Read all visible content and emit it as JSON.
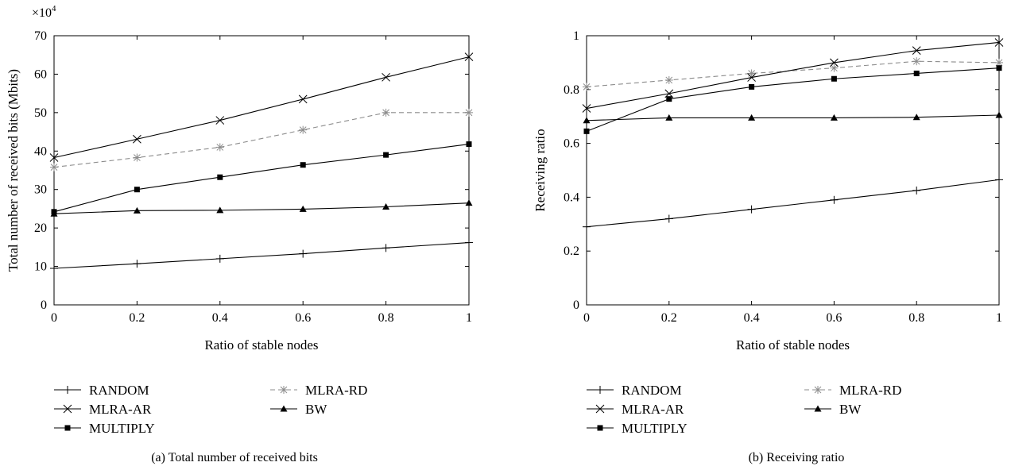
{
  "chart_data": [
    {
      "type": "line",
      "caption": "(a)  Total number of received bits",
      "xlabel": "Ratio of stable nodes",
      "ylabel": "Total number of received bits (Mbits)",
      "y_multiplier": {
        "base": "×10",
        "exp": "4"
      },
      "x": [
        0,
        0.2,
        0.4,
        0.6,
        0.8,
        1
      ],
      "xlim": [
        0,
        1
      ],
      "ylim": [
        0,
        70
      ],
      "x_ticks": [
        "0",
        "0.2",
        "0.4",
        "0.6",
        "0.8",
        "1"
      ],
      "y_ticks": [
        "0",
        "10",
        "20",
        "30",
        "40",
        "50",
        "60",
        "70"
      ],
      "grid": false,
      "legend_position": "below",
      "series": [
        {
          "name": "RANDOM",
          "marker": "plus",
          "dashed": false,
          "color": "#000000",
          "values": [
            9.5,
            10.7,
            12.0,
            13.3,
            14.8,
            16.2
          ]
        },
        {
          "name": "MLRA-RD",
          "marker": "asterisk",
          "dashed": true,
          "color": "#8c8c8c",
          "values": [
            35.8,
            38.3,
            41.0,
            45.5,
            50.0,
            50.0
          ]
        },
        {
          "name": "MLRA-AR",
          "marker": "x",
          "dashed": false,
          "color": "#000000",
          "values": [
            38.3,
            43.1,
            48.0,
            53.5,
            59.2,
            64.5
          ]
        },
        {
          "name": "BW",
          "marker": "triangle",
          "dashed": false,
          "color": "#000000",
          "values": [
            23.7,
            24.5,
            24.6,
            24.9,
            25.5,
            26.5
          ]
        },
        {
          "name": "MULTIPLY",
          "marker": "square",
          "dashed": false,
          "color": "#000000",
          "values": [
            24.2,
            30.0,
            33.2,
            36.4,
            39.0,
            41.8
          ]
        }
      ]
    },
    {
      "type": "line",
      "caption": "(b)  Receiving ratio",
      "xlabel": "Ratio of stable nodes",
      "ylabel": "Receiving ratio",
      "x": [
        0,
        0.2,
        0.4,
        0.6,
        0.8,
        1
      ],
      "xlim": [
        0,
        1
      ],
      "ylim": [
        0,
        1
      ],
      "x_ticks": [
        "0",
        "0.2",
        "0.4",
        "0.6",
        "0.8",
        "1"
      ],
      "y_ticks": [
        "0",
        "0.2",
        "0.4",
        "0.6",
        "0.8",
        "1"
      ],
      "grid": false,
      "legend_position": "below",
      "series": [
        {
          "name": "RANDOM",
          "marker": "plus",
          "dashed": false,
          "color": "#000000",
          "values": [
            0.29,
            0.32,
            0.355,
            0.39,
            0.425,
            0.465
          ]
        },
        {
          "name": "MLRA-RD",
          "marker": "asterisk",
          "dashed": true,
          "color": "#8c8c8c",
          "values": [
            0.81,
            0.835,
            0.86,
            0.88,
            0.905,
            0.9
          ]
        },
        {
          "name": "MLRA-AR",
          "marker": "x",
          "dashed": false,
          "color": "#000000",
          "values": [
            0.73,
            0.785,
            0.845,
            0.9,
            0.945,
            0.975
          ]
        },
        {
          "name": "BW",
          "marker": "triangle",
          "dashed": false,
          "color": "#000000",
          "values": [
            0.685,
            0.695,
            0.695,
            0.695,
            0.697,
            0.705
          ]
        },
        {
          "name": "MULTIPLY",
          "marker": "square",
          "dashed": false,
          "color": "#000000",
          "values": [
            0.645,
            0.765,
            0.81,
            0.84,
            0.86,
            0.88
          ]
        }
      ]
    }
  ]
}
